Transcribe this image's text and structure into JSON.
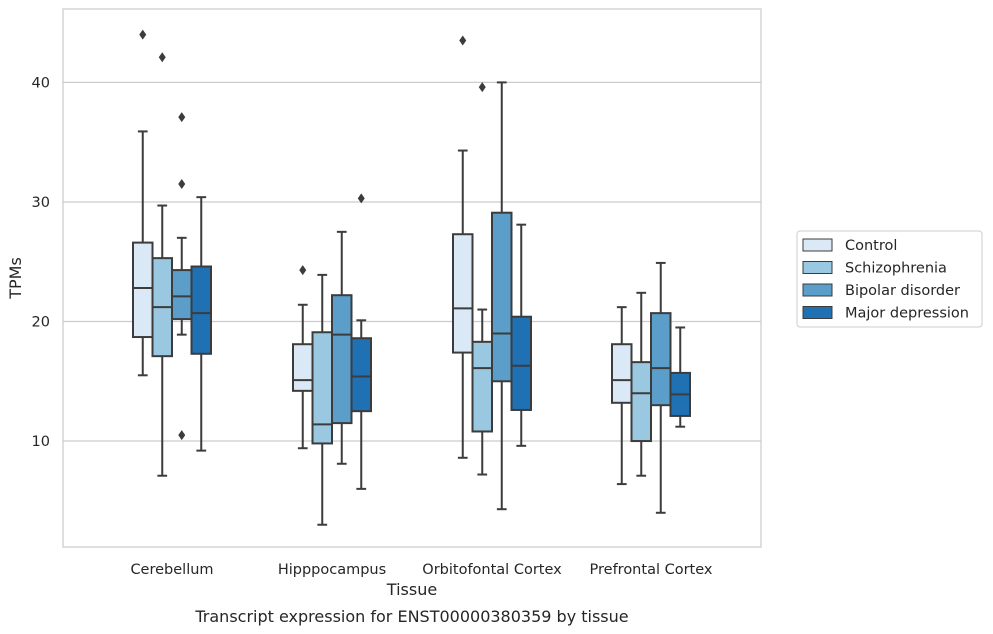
{
  "caption": "Transcript expression for ENST00000380359 by tissue",
  "chart_data": {
    "type": "box",
    "xlabel": "Tissue",
    "ylabel": "TPMs",
    "ylim": [
      1,
      46
    ],
    "yticks": [
      10,
      20,
      30,
      40
    ],
    "grid": "horizontal",
    "legend_position": "right",
    "categories": [
      "Cerebellum",
      "Hipppocampus",
      "Orbitofontal Cortex",
      "Prefrontal Cortex"
    ],
    "series": [
      {
        "name": "Control",
        "color": "#dbe9f6",
        "boxes": [
          {
            "whislo": 15.5,
            "q1": 18.7,
            "med": 22.8,
            "q3": 26.6,
            "whishi": 35.9,
            "fliers": [
              44.0
            ]
          },
          {
            "whislo": 9.4,
            "q1": 14.2,
            "med": 15.1,
            "q3": 18.1,
            "whishi": 21.4,
            "fliers": [
              24.3
            ]
          },
          {
            "whislo": 8.6,
            "q1": 17.4,
            "med": 21.1,
            "q3": 27.3,
            "whishi": 34.3,
            "fliers": [
              43.5
            ]
          },
          {
            "whislo": 6.4,
            "q1": 13.2,
            "med": 15.1,
            "q3": 18.1,
            "whishi": 21.2,
            "fliers": []
          }
        ]
      },
      {
        "name": "Schizophrenia",
        "color": "#9ac8e0",
        "boxes": [
          {
            "whislo": 7.1,
            "q1": 17.1,
            "med": 21.2,
            "q3": 25.3,
            "whishi": 29.7,
            "fliers": [
              42.1
            ]
          },
          {
            "whislo": 3.0,
            "q1": 9.8,
            "med": 11.4,
            "q3": 19.1,
            "whishi": 23.9,
            "fliers": []
          },
          {
            "whislo": 7.2,
            "q1": 10.8,
            "med": 16.1,
            "q3": 18.3,
            "whishi": 21.0,
            "fliers": [
              39.6
            ]
          },
          {
            "whislo": 7.1,
            "q1": 10.0,
            "med": 14.0,
            "q3": 16.6,
            "whishi": 22.4,
            "fliers": []
          }
        ]
      },
      {
        "name": "Bipolar disorder",
        "color": "#5a9ec9",
        "boxes": [
          {
            "whislo": 18.9,
            "q1": 20.2,
            "med": 22.1,
            "q3": 24.3,
            "whishi": 27.0,
            "fliers": [
              37.1,
              31.5,
              10.5
            ]
          },
          {
            "whislo": 8.1,
            "q1": 11.5,
            "med": 18.9,
            "q3": 22.2,
            "whishi": 27.5,
            "fliers": []
          },
          {
            "whislo": 4.3,
            "q1": 15.0,
            "med": 19.0,
            "q3": 29.1,
            "whishi": 40.0,
            "fliers": []
          },
          {
            "whislo": 4.0,
            "q1": 13.0,
            "med": 16.1,
            "q3": 20.7,
            "whishi": 24.9,
            "fliers": []
          }
        ]
      },
      {
        "name": "Major depression",
        "color": "#2070b4",
        "boxes": [
          {
            "whislo": 9.2,
            "q1": 17.3,
            "med": 20.7,
            "q3": 24.6,
            "whishi": 30.4,
            "fliers": []
          },
          {
            "whislo": 6.0,
            "q1": 12.5,
            "med": 15.4,
            "q3": 18.6,
            "whishi": 20.1,
            "fliers": [
              30.3
            ]
          },
          {
            "whislo": 9.6,
            "q1": 12.6,
            "med": 16.3,
            "q3": 20.4,
            "whishi": 28.1,
            "fliers": []
          },
          {
            "whislo": 11.2,
            "q1": 12.1,
            "med": 13.9,
            "q3": 15.7,
            "whishi": 19.5,
            "fliers": []
          }
        ]
      }
    ]
  }
}
